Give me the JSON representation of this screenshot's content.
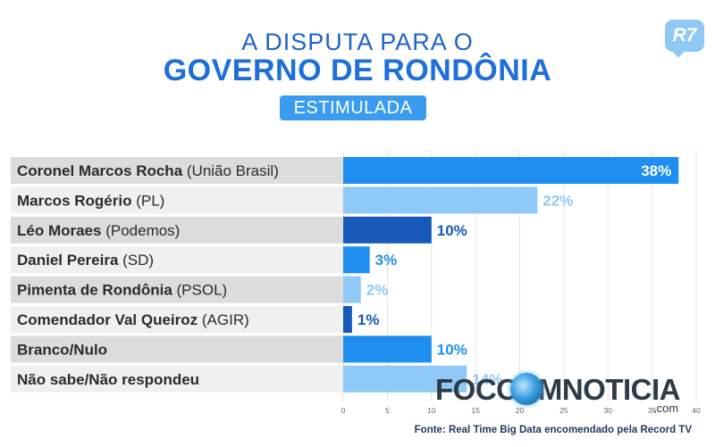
{
  "header": {
    "line1": "A DISPUTA PARA O",
    "line2": "GOVERNO DE RONDÔNIA",
    "badge": "ESTIMULADA",
    "logo": "R7"
  },
  "watermark": {
    "text": "FOCOEMNOTICIA",
    "suffix": ".com"
  },
  "source": "Fonte: Real Time Big Data encomendado pela Record TV",
  "chart_data": {
    "type": "bar",
    "orientation": "horizontal",
    "categories": [
      {
        "name": "Coronel Marcos Rocha",
        "party": "(União Brasil)"
      },
      {
        "name": "Marcos Rogério",
        "party": "(PL)"
      },
      {
        "name": "Léo Moraes",
        "party": "(Podemos)"
      },
      {
        "name": "Daniel Pereira",
        "party": "(SD)"
      },
      {
        "name": "Pimenta de Rondônia",
        "party": "(PSOL)"
      },
      {
        "name": "Comendador Val Queiroz",
        "party": "(AGIR)"
      },
      {
        "name": "Branco/Nulo",
        "party": ""
      },
      {
        "name": "Não sabe/Não respondeu",
        "party": ""
      }
    ],
    "values": [
      38,
      22,
      10,
      3,
      2,
      1,
      10,
      14
    ],
    "value_labels": [
      "38%",
      "22%",
      "10%",
      "3%",
      "2%",
      "1%",
      "10%",
      "14%"
    ],
    "bar_colors": [
      "#1e8ef0",
      "#8ec9f7",
      "#1759b8",
      "#1e8ef0",
      "#8ec9f7",
      "#1759b8",
      "#1e8ef0",
      "#8ec9f7"
    ],
    "xlim": [
      0,
      40
    ],
    "xticks": [
      0,
      5,
      10,
      15,
      20,
      25,
      30,
      35,
      40
    ],
    "grid": true
  }
}
